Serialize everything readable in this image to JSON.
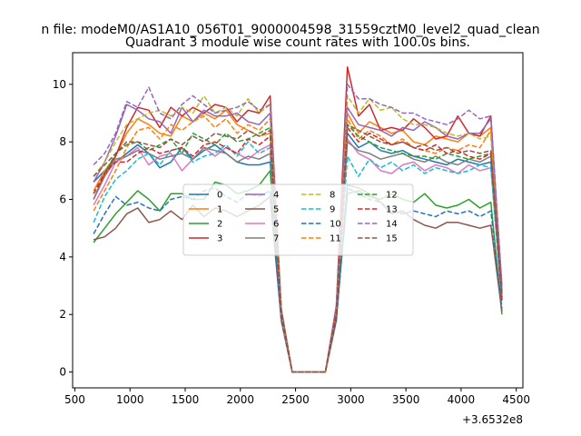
{
  "chart_data": {
    "type": "line",
    "suptitle": "n file: modeM0/AS1A10_056T01_9000004598_31559cztM0_level2_quad_clean",
    "title": "Quadrant 3 module wise count rates with 100.0s bins.",
    "xlabel": "",
    "ylabel": "",
    "x_offset_label": "+3.6532e8",
    "xlim": [
      480,
      4560
    ],
    "ylim": [
      -0.55,
      11.1
    ],
    "xticks": [
      500,
      1000,
      1500,
      2000,
      2500,
      3000,
      3500,
      4000,
      4500
    ],
    "yticks": [
      0,
      2,
      4,
      6,
      8,
      10
    ],
    "x": [
      670,
      770,
      870,
      970,
      1070,
      1170,
      1270,
      1370,
      1470,
      1570,
      1670,
      1770,
      1870,
      1970,
      2070,
      2170,
      2270,
      2370,
      2470,
      2570,
      2670,
      2770,
      2870,
      2970,
      3070,
      3170,
      3270,
      3370,
      3470,
      3570,
      3670,
      3770,
      3870,
      3970,
      4070,
      4170,
      4270,
      4370
    ],
    "legend": {
      "placement": "center",
      "columns": 4
    },
    "series": [
      {
        "name": "0",
        "color": "#1f77b4",
        "dash": false,
        "values": [
          6.6,
          7.0,
          7.3,
          7.6,
          7.9,
          7.6,
          7.1,
          7.3,
          7.8,
          7.4,
          7.7,
          7.9,
          7.6,
          7.3,
          7.2,
          7.2,
          7.3,
          2.0,
          0,
          0,
          0,
          0,
          2.2,
          8.3,
          7.8,
          8.0,
          7.7,
          7.6,
          7.7,
          7.5,
          7.4,
          7.3,
          7.2,
          7.4,
          7.3,
          7.2,
          7.3,
          2.5
        ]
      },
      {
        "name": "1",
        "color": "#ff7f0e",
        "dash": false,
        "values": [
          6.3,
          7.0,
          7.5,
          8.3,
          8.8,
          8.6,
          8.3,
          8.2,
          8.9,
          8.7,
          9.0,
          8.8,
          9.1,
          8.6,
          8.4,
          8.2,
          8.3,
          2.0,
          0,
          0,
          0,
          0,
          2.1,
          9.0,
          8.3,
          8.7,
          8.5,
          8.3,
          8.4,
          8.0,
          7.9,
          8.2,
          8.1,
          8.0,
          8.3,
          8.2,
          8.5,
          2.7
        ]
      },
      {
        "name": "2",
        "color": "#2ca02c",
        "dash": false,
        "values": [
          4.5,
          5.0,
          5.5,
          5.9,
          6.3,
          6.0,
          5.6,
          6.2,
          6.2,
          6.0,
          6.0,
          6.6,
          6.5,
          6.2,
          6.3,
          6.5,
          7.0,
          1.9,
          0,
          0,
          0,
          0,
          1.9,
          6.2,
          6.3,
          6.1,
          6.0,
          6.2,
          6.0,
          5.9,
          6.2,
          5.8,
          5.7,
          5.8,
          6.0,
          5.7,
          5.9,
          2.0
        ]
      },
      {
        "name": "3",
        "color": "#d62728",
        "dash": false,
        "values": [
          6.0,
          6.9,
          7.5,
          8.5,
          9.2,
          9.1,
          8.5,
          9.2,
          8.9,
          9.2,
          9.0,
          9.3,
          9.2,
          8.7,
          9.1,
          9.0,
          9.6,
          2.2,
          0,
          0,
          0,
          0,
          2.3,
          10.6,
          8.9,
          9.3,
          8.4,
          8.5,
          8.4,
          8.8,
          8.5,
          8.1,
          8.2,
          8.9,
          8.3,
          8.2,
          8.9,
          2.7
        ]
      },
      {
        "name": "4",
        "color": "#9467bd",
        "dash": false,
        "values": [
          6.6,
          7.3,
          8.2,
          9.3,
          9.1,
          8.8,
          8.7,
          8.3,
          9.2,
          8.7,
          9.1,
          8.9,
          8.9,
          9.0,
          8.7,
          8.6,
          9.0,
          2.0,
          0,
          0,
          0,
          0,
          2.1,
          9.2,
          8.6,
          8.5,
          8.4,
          8.2,
          8.5,
          8.4,
          8.7,
          8.5,
          8.2,
          8.1,
          8.3,
          8.3,
          8.8,
          3.0
        ]
      },
      {
        "name": "5",
        "color": "#8c564b",
        "dash": false,
        "values": [
          4.6,
          4.7,
          5.0,
          5.5,
          5.7,
          5.2,
          5.3,
          5.6,
          5.3,
          5.8,
          5.4,
          5.7,
          5.6,
          5.4,
          5.6,
          5.8,
          6.1,
          1.8,
          0,
          0,
          0,
          0,
          1.8,
          6.5,
          6.4,
          6.2,
          5.9,
          5.5,
          5.6,
          5.3,
          5.1,
          5.0,
          5.2,
          5.2,
          5.1,
          5.0,
          5.1,
          2.1
        ]
      },
      {
        "name": "6",
        "color": "#e377c2",
        "dash": false,
        "values": [
          5.8,
          6.5,
          7.3,
          7.5,
          7.8,
          7.2,
          7.5,
          7.6,
          7.0,
          7.4,
          7.8,
          7.5,
          7.8,
          7.6,
          7.4,
          7.7,
          7.9,
          2.0,
          0,
          0,
          0,
          0,
          2.0,
          8.1,
          7.6,
          7.4,
          7.0,
          6.9,
          7.2,
          7.3,
          7.0,
          7.2,
          7.1,
          6.9,
          7.2,
          7.0,
          7.1,
          2.5
        ]
      },
      {
        "name": "7",
        "color": "#7f7f7f",
        "dash": false,
        "values": [
          6.0,
          6.8,
          7.4,
          7.5,
          7.7,
          7.6,
          7.4,
          7.5,
          7.6,
          7.4,
          7.8,
          7.7,
          7.6,
          7.3,
          7.5,
          7.4,
          7.6,
          2.0,
          0,
          0,
          0,
          0,
          2.0,
          8.0,
          7.7,
          7.6,
          7.4,
          7.5,
          7.6,
          7.4,
          7.3,
          7.5,
          7.3,
          7.2,
          7.4,
          7.3,
          7.5,
          2.6
        ]
      },
      {
        "name": "8",
        "color": "#bcbd22",
        "dash": true,
        "values": [
          6.8,
          7.3,
          8.0,
          8.6,
          8.8,
          9.0,
          9.1,
          8.9,
          9.2,
          9.0,
          9.6,
          9.0,
          9.2,
          8.9,
          9.5,
          9.0,
          9.3,
          2.2,
          0,
          0,
          0,
          0,
          2.2,
          9.6,
          9.0,
          9.5,
          9.1,
          9.2,
          8.8,
          8.6,
          8.6,
          8.5,
          8.3,
          8.2,
          8.3,
          8.1,
          8.2,
          2.8
        ]
      },
      {
        "name": "9",
        "color": "#17becf",
        "dash": true,
        "values": [
          5.2,
          6.1,
          6.7,
          7.0,
          7.4,
          7.6,
          7.2,
          7.7,
          7.8,
          7.3,
          7.5,
          7.6,
          7.9,
          7.5,
          8.0,
          7.6,
          7.8,
          1.9,
          0,
          0,
          0,
          0,
          2.0,
          7.5,
          6.8,
          7.4,
          7.1,
          7.3,
          7.0,
          7.2,
          6.9,
          7.1,
          7.0,
          6.9,
          7.0,
          7.2,
          7.1,
          2.4
        ]
      },
      {
        "name": "10",
        "color": "#1f77b4",
        "dash": true,
        "values": [
          4.8,
          5.5,
          6.1,
          5.8,
          5.9,
          5.7,
          5.6,
          6.0,
          6.1,
          6.0,
          6.3,
          6.4,
          6.1,
          5.9,
          6.2,
          6.1,
          6.3,
          1.8,
          0,
          0,
          0,
          0,
          1.8,
          6.4,
          6.2,
          6.0,
          5.9,
          5.6,
          5.5,
          5.6,
          5.5,
          5.4,
          5.6,
          5.5,
          5.6,
          5.4,
          5.6,
          2.2
        ]
      },
      {
        "name": "11",
        "color": "#ff7f0e",
        "dash": true,
        "values": [
          5.6,
          6.3,
          7.0,
          7.8,
          8.4,
          8.5,
          8.1,
          8.6,
          8.4,
          8.7,
          8.9,
          8.5,
          8.8,
          8.3,
          8.6,
          8.4,
          8.8,
          2.0,
          0,
          0,
          0,
          0,
          2.1,
          8.8,
          8.1,
          8.4,
          8.2,
          7.9,
          8.1,
          7.8,
          7.7,
          7.6,
          7.8,
          7.7,
          7.9,
          7.8,
          8.4,
          2.6
        ]
      },
      {
        "name": "12",
        "color": "#2ca02c",
        "dash": true,
        "values": [
          6.2,
          6.9,
          7.6,
          7.9,
          8.0,
          7.7,
          7.9,
          8.1,
          7.6,
          8.3,
          8.1,
          7.9,
          8.3,
          8.0,
          8.1,
          8.3,
          8.5,
          2.0,
          0,
          0,
          0,
          0,
          2.1,
          8.6,
          8.2,
          8.0,
          7.8,
          7.7,
          7.6,
          7.5,
          7.5,
          7.4,
          7.6,
          7.5,
          7.4,
          7.5,
          7.6,
          2.6
        ]
      },
      {
        "name": "13",
        "color": "#d62728",
        "dash": true,
        "values": [
          6.2,
          6.9,
          7.3,
          7.3,
          7.6,
          7.8,
          7.6,
          7.7,
          7.8,
          7.5,
          7.9,
          8.0,
          7.8,
          7.6,
          8.1,
          7.9,
          8.2,
          2.0,
          0,
          0,
          0,
          0,
          2.0,
          8.5,
          8.0,
          8.3,
          8.1,
          7.9,
          8.0,
          7.8,
          7.7,
          7.9,
          7.6,
          7.7,
          7.5,
          7.4,
          7.6,
          2.5
        ]
      },
      {
        "name": "14",
        "color": "#9467bd",
        "dash": true,
        "values": [
          7.2,
          7.6,
          8.3,
          9.4,
          9.2,
          9.9,
          9.0,
          8.8,
          9.3,
          9.6,
          9.3,
          9.0,
          9.1,
          9.2,
          9.4,
          9.1,
          9.3,
          2.2,
          0,
          0,
          0,
          0,
          2.3,
          10.0,
          9.5,
          9.5,
          9.3,
          9.2,
          9.0,
          9.0,
          8.8,
          8.7,
          8.6,
          8.8,
          9.1,
          8.8,
          8.9,
          3.0
        ]
      },
      {
        "name": "15",
        "color": "#8c564b",
        "dash": true,
        "values": [
          6.8,
          7.2,
          7.6,
          8.0,
          8.0,
          7.9,
          7.8,
          8.1,
          7.9,
          8.2,
          8.0,
          8.3,
          8.2,
          8.1,
          8.4,
          8.2,
          8.4,
          2.1,
          0,
          0,
          0,
          0,
          2.1,
          8.6,
          8.4,
          8.2,
          8.0,
          7.9,
          8.0,
          7.8,
          7.9,
          7.7,
          7.8,
          7.6,
          7.7,
          7.6,
          7.7,
          2.8
        ]
      }
    ]
  }
}
